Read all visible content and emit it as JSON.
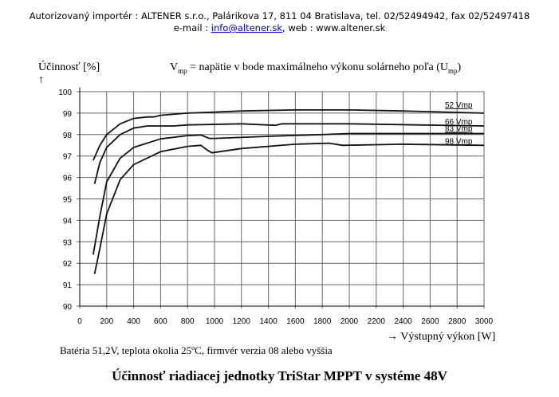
{
  "header": {
    "line1": "Autorizovaný importér : ALTENER s.r.o., Palárikova 17, 811 04 Bratislava, tel. 02/52494942, fax 02/52497418",
    "email_label": "e-mail : ",
    "email": "info@altener.sk",
    "web": ", web : www.altener.sk"
  },
  "footer": {
    "note": "Batéria 51,2V, teplota okolia 25ºC, firmvér verzia 08 alebo vyššia",
    "caption": "Účinnosť riadiacej jednotky TriStar MPPT v systéme 48V"
  },
  "chart_data": {
    "type": "line",
    "title": "Vmp = napätie v bode maximálneho výkonu solárneho poľa (Ump)",
    "title_parts": {
      "v": "V",
      "v_sub": "mp",
      "mid": " = napätie v bode maximálneho výkonu solárneho poľa (U",
      "u_sub": "mp",
      "end": ")"
    },
    "ylabel": "Účinnosť [%]",
    "yarrow": "↑",
    "xlabel": "→ Výstupný výkon [W]",
    "xlim": [
      0,
      3000
    ],
    "ylim": [
      90,
      100
    ],
    "grid": true,
    "xticks": [
      0,
      200,
      400,
      600,
      800,
      1000,
      1200,
      1400,
      1600,
      1800,
      2000,
      2200,
      2400,
      2600,
      2800,
      3000
    ],
    "yticks": [
      90,
      91,
      92,
      93,
      94,
      95,
      96,
      97,
      98,
      99,
      100
    ],
    "series": [
      {
        "name": "52 Vmp",
        "points": [
          [
            100,
            96.8
          ],
          [
            150,
            97.5
          ],
          [
            200,
            98.0
          ],
          [
            300,
            98.5
          ],
          [
            400,
            98.75
          ],
          [
            500,
            98.82
          ],
          [
            550,
            98.82
          ],
          [
            600,
            98.9
          ],
          [
            800,
            99.0
          ],
          [
            1000,
            99.05
          ],
          [
            1200,
            99.1
          ],
          [
            1600,
            99.15
          ],
          [
            2000,
            99.15
          ],
          [
            2400,
            99.1
          ],
          [
            3000,
            99.0
          ]
        ]
      },
      {
        "name": "66 Vmp",
        "points": [
          [
            110,
            95.7
          ],
          [
            150,
            96.7
          ],
          [
            200,
            97.4
          ],
          [
            300,
            98.0
          ],
          [
            400,
            98.3
          ],
          [
            500,
            98.4
          ],
          [
            700,
            98.4
          ],
          [
            800,
            98.45
          ],
          [
            1200,
            98.5
          ],
          [
            1450,
            98.43
          ],
          [
            1500,
            98.5
          ],
          [
            2000,
            98.5
          ],
          [
            3000,
            98.4
          ]
        ]
      },
      {
        "name": "83 Vmp",
        "points": [
          [
            100,
            92.4
          ],
          [
            150,
            94.2
          ],
          [
            200,
            95.8
          ],
          [
            300,
            96.9
          ],
          [
            400,
            97.4
          ],
          [
            600,
            97.8
          ],
          [
            800,
            97.95
          ],
          [
            900,
            97.98
          ],
          [
            960,
            97.82
          ],
          [
            1000,
            97.82
          ],
          [
            1400,
            97.92
          ],
          [
            1800,
            98.0
          ],
          [
            2000,
            98.05
          ],
          [
            3000,
            98.05
          ]
        ]
      },
      {
        "name": "98 Vmp",
        "points": [
          [
            110,
            91.5
          ],
          [
            150,
            92.7
          ],
          [
            200,
            94.3
          ],
          [
            300,
            95.9
          ],
          [
            400,
            96.6
          ],
          [
            600,
            97.2
          ],
          [
            800,
            97.45
          ],
          [
            900,
            97.5
          ],
          [
            940,
            97.3
          ],
          [
            980,
            97.15
          ],
          [
            1200,
            97.35
          ],
          [
            1600,
            97.55
          ],
          [
            1850,
            97.6
          ],
          [
            1950,
            97.5
          ],
          [
            2400,
            97.55
          ],
          [
            3000,
            97.5
          ]
        ]
      }
    ]
  }
}
